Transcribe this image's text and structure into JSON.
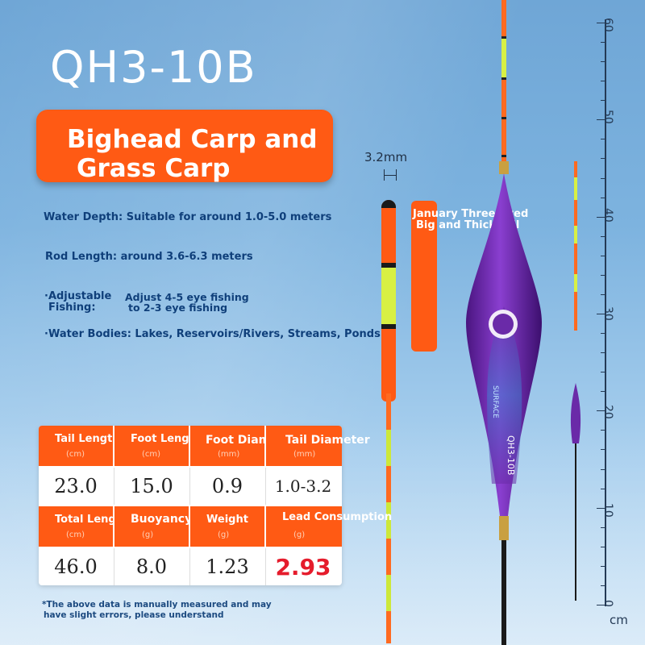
{
  "title": "QH3-10B",
  "banner": {
    "line1": "Bighead Carp and",
    "line2": "Grass Carp"
  },
  "info": {
    "depth": "Water Depth: Suitable for around 1.0-5.0 meters",
    "rod": "Rod Length: around 3.6-6.3 meters",
    "adjust_label_1": "·Adjustable",
    "adjust_label_2": "Fishing:",
    "adjust_value_1": "Adjust 4-5 eye fishing",
    "adjust_value_2": "to 2-3 eye fishing",
    "water": "·Water Bodies: Lakes, Reservoirs/Rivers, Streams, Ponds"
  },
  "diameter_label": "3.2mm",
  "tag": {
    "line1": "January Three-eyed",
    "line2": "Big and Thick Tail"
  },
  "table": {
    "row1_headers": [
      {
        "label": "Tail Length",
        "unit": "(cm)"
      },
      {
        "label": "Foot Length",
        "unit": "(cm)"
      },
      {
        "label": "Foot Diameter",
        "unit": "(mm)"
      },
      {
        "label": "Tail Diameter",
        "unit": "(mm)"
      }
    ],
    "row1_values": [
      "23.0",
      "15.0",
      "0.9",
      "1.0-3.2"
    ],
    "row2_headers": [
      {
        "label": "Total Length",
        "unit": "(cm)"
      },
      {
        "label": "Buoyancy",
        "unit": "(g)"
      },
      {
        "label": "Weight",
        "unit": "(g)"
      },
      {
        "label": "Lead Consumption",
        "unit": "(g)"
      }
    ],
    "row2_values": [
      "46.0",
      "8.0",
      "1.23",
      "2.93"
    ]
  },
  "footnote": {
    "line1": "*The above data is manually measured and may",
    "line2": "have slight errors, please understand"
  },
  "ruler": {
    "labels": [
      "60",
      "50",
      "40",
      "30",
      "20",
      "10",
      "0"
    ],
    "unit": "cm"
  },
  "float_text": {
    "brand": "SURFACE",
    "model": "QH3-10B"
  },
  "colors": {
    "accent": "#ff5a14",
    "purple": "#6a2aa8",
    "value_red": "#e51c2c"
  }
}
